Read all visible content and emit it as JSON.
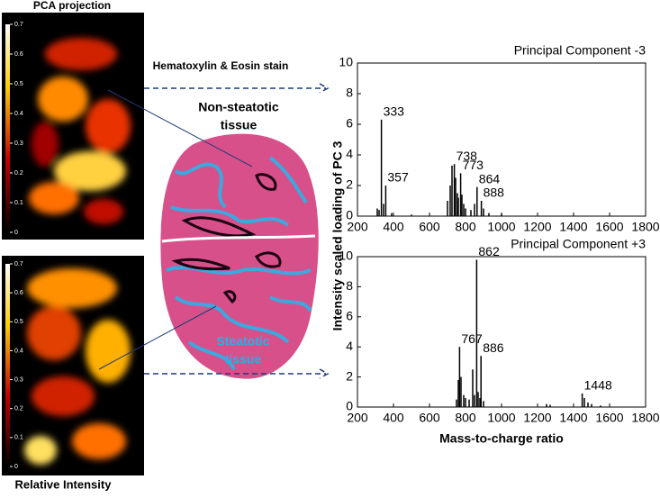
{
  "figure": {
    "left_title": "PCA projection",
    "left_bottom_label": "Relative Intensity",
    "stain_label": "Hematoxylin & Eosin stain",
    "non_steatotic": [
      "Non-steatotic",
      "tissue"
    ],
    "steatotic": [
      "Steatotic",
      "tissue"
    ],
    "ylabel": "Intensity scaled loading of PC 3",
    "xlabel": "Mass-to-charge ratio"
  },
  "colorbars": [
    {
      "lim": [
        0,
        0.7
      ],
      "ticks": [
        0,
        0.1,
        0.2,
        0.3,
        0.4,
        0.5,
        0.6,
        0.7
      ]
    },
    {
      "lim": [
        0,
        0.7
      ],
      "ticks": [
        0,
        0.1,
        0.2,
        0.3,
        0.4,
        0.5,
        0.6,
        0.7
      ]
    }
  ],
  "chart_data": [
    {
      "type": "stem",
      "title": "Principal Component -3",
      "color": "#000000",
      "x": [
        310,
        320,
        333,
        345,
        357,
        390,
        500,
        700,
        715,
        725,
        738,
        745,
        755,
        760,
        773,
        780,
        790,
        800,
        830,
        850,
        864,
        888,
        900,
        930,
        1000
      ],
      "values": [
        0.5,
        0.4,
        6.3,
        0.8,
        2.0,
        0.2,
        0.1,
        1.0,
        2.0,
        3.3,
        3.4,
        2.5,
        1.5,
        1.2,
        2.8,
        1.4,
        0.8,
        0.5,
        0.4,
        0.8,
        1.9,
        1.0,
        0.5,
        0.2,
        0.15
      ],
      "labels": [
        null,
        null,
        "333",
        null,
        "357",
        null,
        null,
        null,
        null,
        null,
        "738",
        null,
        null,
        null,
        "773",
        null,
        null,
        null,
        null,
        null,
        "864",
        "888",
        null,
        null,
        null
      ],
      "xlim": [
        200,
        1800
      ],
      "xticks": [
        200,
        400,
        600,
        800,
        1000,
        1200,
        1400,
        1600,
        1800
      ],
      "ylim": [
        0,
        10
      ],
      "yticks": [
        0,
        2,
        4,
        6,
        8,
        10
      ]
    },
    {
      "type": "stem",
      "title": "Principal Component +3",
      "color": "#000000",
      "x": [
        750,
        760,
        767,
        775,
        790,
        800,
        820,
        840,
        850,
        862,
        870,
        880,
        886,
        900,
        1250,
        1270,
        1448,
        1460,
        1480,
        1500,
        1550
      ],
      "values": [
        0.5,
        1.8,
        4.0,
        2.0,
        0.8,
        0.6,
        0.5,
        2.5,
        0.8,
        9.8,
        1.0,
        0.6,
        3.4,
        0.4,
        0.2,
        0.15,
        0.9,
        0.6,
        0.3,
        0.2,
        0.1
      ],
      "labels": [
        null,
        null,
        "767",
        null,
        null,
        null,
        null,
        null,
        null,
        "862",
        null,
        null,
        "886",
        null,
        null,
        null,
        "1448",
        null,
        null,
        null,
        null
      ],
      "xlim": [
        200,
        1800
      ],
      "xticks": [
        200,
        400,
        600,
        800,
        1000,
        1200,
        1400,
        1600,
        1800
      ],
      "ylim": [
        0,
        10
      ],
      "yticks": [
        0,
        2,
        4,
        6,
        8,
        10
      ]
    }
  ]
}
